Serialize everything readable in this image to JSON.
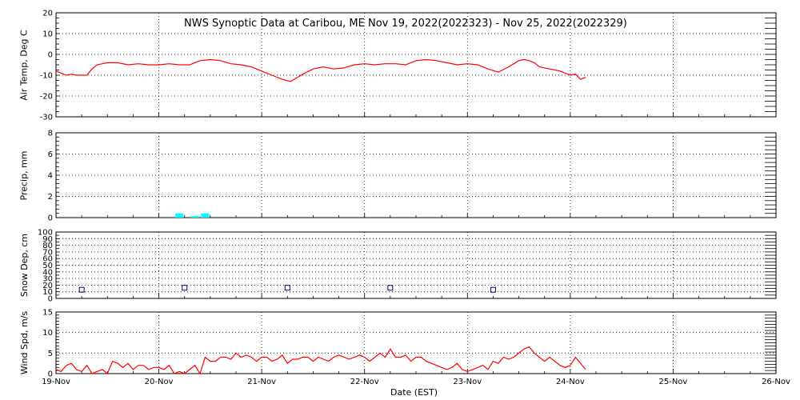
{
  "title": "NWS Synoptic Data at Caribou, ME   Nov 19, 2022(2022323) - Nov 25, 2022(2022329)",
  "xlabel": "Date (EST)",
  "x_tick_labels": [
    "19-Nov",
    "20-Nov",
    "21-Nov",
    "22-Nov",
    "23-Nov",
    "24-Nov",
    "25-Nov",
    "26-Nov"
  ],
  "colors": {
    "temp": "#ff0000",
    "precip": "#00ffff",
    "snow": "#000080",
    "wind": "#ff0000",
    "grid": "#000000"
  },
  "chart_data": [
    {
      "type": "line",
      "ylabel": "Air Temp, Deg C",
      "ylim": [
        -30,
        20
      ],
      "yticks": [
        -30,
        -20,
        -10,
        0,
        10,
        20
      ],
      "xlim_days": [
        0,
        7
      ],
      "grid": true,
      "series": [
        {
          "x_days": [
            0,
            0.05,
            0.1,
            0.15,
            0.2,
            0.25,
            0.3,
            0.35,
            0.4,
            0.45,
            0.5,
            0.6,
            0.7,
            0.8,
            0.9,
            1.0,
            1.1,
            1.2,
            1.3,
            1.4,
            1.5,
            1.6,
            1.7,
            1.8,
            1.9,
            2.0,
            2.1,
            2.2,
            2.28,
            2.35,
            2.4,
            2.5,
            2.6,
            2.7,
            2.8,
            2.9,
            3.0,
            3.1,
            3.2,
            3.3,
            3.4,
            3.5,
            3.6,
            3.7,
            3.8,
            3.9,
            4.0,
            4.1,
            4.2,
            4.3,
            4.4,
            4.5,
            4.55,
            4.6,
            4.65,
            4.7,
            4.8,
            4.9,
            5.0,
            5.05,
            5.1,
            5.15
          ],
          "y": [
            -8,
            -9,
            -10,
            -9.5,
            -10,
            -10,
            -10,
            -7,
            -5,
            -4.5,
            -4,
            -4,
            -5,
            -4.5,
            -5,
            -5,
            -4.5,
            -5,
            -5,
            -3,
            -2.5,
            -3,
            -4.5,
            -5,
            -6,
            -8,
            -10,
            -12,
            -13,
            -11,
            -9.5,
            -7,
            -6,
            -7,
            -6.5,
            -5,
            -4.5,
            -5,
            -4.5,
            -4.5,
            -5,
            -3,
            -2.5,
            -3,
            -4,
            -5,
            -4.5,
            -5,
            -7,
            -8.5,
            -6,
            -3,
            -2.5,
            -3,
            -4,
            -6,
            -7,
            -8,
            -10,
            -9.5,
            -12,
            -11
          ]
        }
      ]
    },
    {
      "type": "bar",
      "ylabel": "Precip, mm",
      "ylim": [
        0,
        8
      ],
      "yticks": [
        0,
        2,
        4,
        6,
        8
      ],
      "xlim_days": [
        0,
        7
      ],
      "grid": true,
      "series": [
        {
          "x_days": [
            1.2,
            1.35,
            1.45
          ],
          "values": [
            0.4,
            0.1,
            0.4
          ],
          "width_days": 0.08
        }
      ]
    },
    {
      "type": "scatter",
      "ylabel": "Snow Dep, cm",
      "ylim": [
        0,
        100
      ],
      "yticks": [
        0,
        10,
        20,
        30,
        40,
        50,
        60,
        70,
        80,
        90,
        100
      ],
      "xlim_days": [
        0,
        7
      ],
      "grid": true,
      "series": [
        {
          "x_days": [
            0.25,
            1.25,
            2.25,
            3.25,
            4.25
          ],
          "y": [
            13,
            16,
            16,
            16,
            13
          ]
        }
      ]
    },
    {
      "type": "line",
      "ylabel": "Wind Spd, m/s",
      "ylim": [
        0,
        15
      ],
      "yticks": [
        0,
        5,
        10,
        15
      ],
      "xlim_days": [
        0,
        7
      ],
      "grid": true,
      "series": [
        {
          "x_days": [
            0,
            0.05,
            0.1,
            0.15,
            0.2,
            0.25,
            0.3,
            0.35,
            0.4,
            0.45,
            0.5,
            0.55,
            0.6,
            0.65,
            0.7,
            0.75,
            0.8,
            0.85,
            0.9,
            0.95,
            1.0,
            1.05,
            1.1,
            1.15,
            1.2,
            1.25,
            1.3,
            1.35,
            1.4,
            1.45,
            1.5,
            1.55,
            1.6,
            1.65,
            1.7,
            1.75,
            1.8,
            1.85,
            1.9,
            1.95,
            2.0,
            2.05,
            2.1,
            2.15,
            2.2,
            2.25,
            2.3,
            2.35,
            2.4,
            2.45,
            2.5,
            2.55,
            2.6,
            2.65,
            2.7,
            2.75,
            2.8,
            2.85,
            2.9,
            2.95,
            3.0,
            3.05,
            3.1,
            3.15,
            3.2,
            3.25,
            3.3,
            3.35,
            3.4,
            3.45,
            3.5,
            3.55,
            3.6,
            3.65,
            3.7,
            3.75,
            3.8,
            3.85,
            3.9,
            3.95,
            4.0,
            4.05,
            4.1,
            4.15,
            4.2,
            4.25,
            4.3,
            4.35,
            4.4,
            4.45,
            4.5,
            4.55,
            4.6,
            4.65,
            4.7,
            4.75,
            4.8,
            4.85,
            4.9,
            4.95,
            5.0,
            5.05,
            5.1,
            5.15
          ],
          "y": [
            1,
            0.5,
            2,
            2.5,
            1,
            0.5,
            2,
            0,
            0.5,
            1,
            0,
            3,
            2.5,
            1.5,
            2.5,
            1,
            2,
            2,
            1,
            1.5,
            1.5,
            1,
            2,
            0,
            0.5,
            0,
            1,
            2,
            0,
            4,
            3,
            3,
            4,
            4,
            3.5,
            5,
            4,
            4.5,
            4,
            3,
            4,
            4,
            3,
            3.5,
            4.5,
            2.5,
            3.5,
            3.5,
            4,
            4,
            3,
            4,
            3.5,
            3,
            4,
            4.5,
            4,
            3.5,
            4,
            4.5,
            4,
            3,
            4,
            5,
            4,
            6,
            4,
            4,
            4.5,
            3,
            4,
            4,
            3,
            2.5,
            2,
            1.5,
            1,
            1.5,
            2.5,
            1,
            0.5,
            1,
            1.5,
            2,
            1,
            3,
            2.5,
            4,
            3.5,
            4,
            5,
            6,
            6.5,
            5,
            4,
            3,
            4,
            3,
            2,
            1.5,
            2,
            4,
            2.5,
            1
          ]
        }
      ]
    }
  ]
}
